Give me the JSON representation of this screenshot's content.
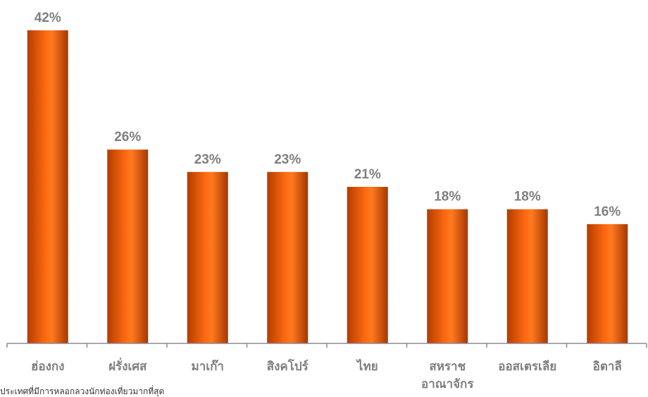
{
  "chart_data": {
    "type": "bar",
    "categories": [
      "ฮ่องกง",
      "ฝรั่งเศส",
      "มาเก๊า",
      "สิงคโปร์",
      "ไทย",
      "สหราช อาณาจักร",
      "ออสเตรเลีย",
      "อิตาลี"
    ],
    "values": [
      42,
      26,
      23,
      23,
      21,
      18,
      18,
      16
    ],
    "value_labels": [
      "42%",
      "26%",
      "23%",
      "23%",
      "21%",
      "18%",
      "18%",
      "16%"
    ],
    "ylim": [
      0,
      45
    ],
    "grid": false,
    "legend": "none",
    "bar_color": "#e8610a"
  },
  "footnote": "ประเทศที่มีการหลอกลวงนักท่องเที่ยวมากที่สุด"
}
